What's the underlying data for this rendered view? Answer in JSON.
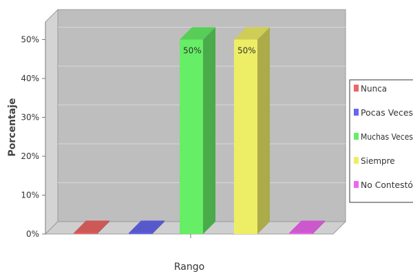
{
  "chart_data": {
    "type": "bar",
    "title": "",
    "xlabel": "Rango",
    "ylabel": "Porcentaje",
    "ylim": [
      0,
      55
    ],
    "yticks": [
      "0%",
      "10%",
      "20%",
      "30%",
      "40%",
      "50%"
    ],
    "grid": true,
    "legend_position": "right",
    "series": [
      {
        "name": "Nunca",
        "value": 0,
        "label": "",
        "color": "#ee6666"
      },
      {
        "name": "Pocas Veces",
        "value": 0,
        "label": "",
        "color": "#6666ee"
      },
      {
        "name": "Muchas Veces",
        "value": 50,
        "label": "50%",
        "color": "#66ee66"
      },
      {
        "name": "Siempre",
        "value": 50,
        "label": "50%",
        "color": "#eeee66"
      },
      {
        "name": "No Contestó",
        "value": 0,
        "label": "",
        "color": "#ee66ee"
      }
    ]
  }
}
